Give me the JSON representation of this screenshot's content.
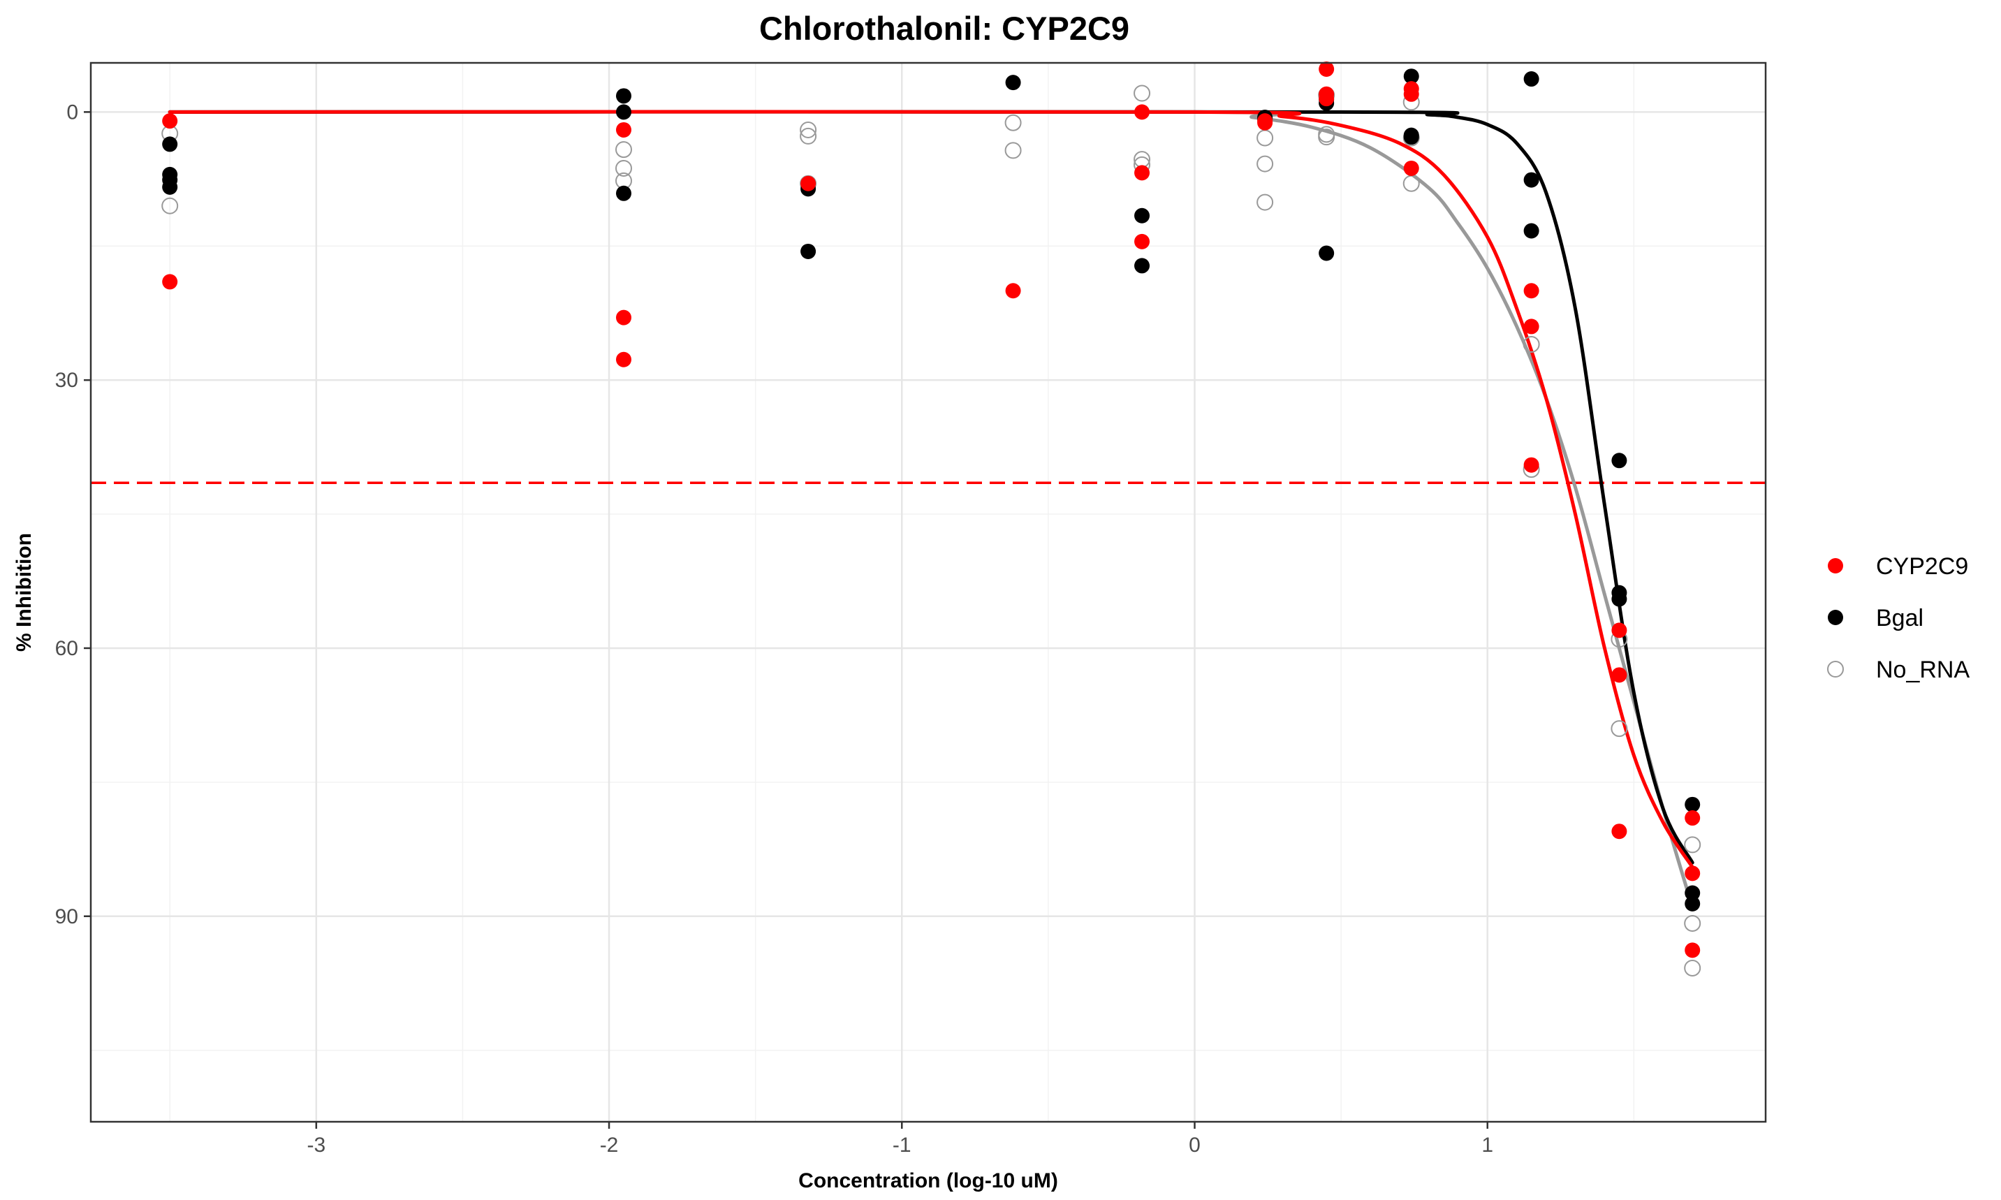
{
  "chart_data": {
    "type": "scatter",
    "title": "Chlorothalonil: CYP2C9",
    "xlabel": "Concentration (log-10 uM)",
    "ylabel": "% Inhibition",
    "xlim": [
      -3.77,
      1.95
    ],
    "ylim": [
      113,
      -5.5
    ],
    "y_reversed": true,
    "x_ticks": [
      -3,
      -2,
      -1,
      0,
      1
    ],
    "x_tick_labels": [
      "-3",
      "-2",
      "-1",
      "0",
      "1"
    ],
    "y_ticks": [
      0,
      30,
      60,
      90
    ],
    "y_tick_labels": [
      "0",
      "30",
      "60",
      "90"
    ],
    "grid": true,
    "legend_position": "right",
    "reference_line": {
      "y": 41.5,
      "color": "#ff0000",
      "style": "dashed"
    },
    "series": [
      {
        "name": "CYP2C9",
        "color": "#ff0000",
        "marker": "filled",
        "points": [
          [
            -3.5,
            1
          ],
          [
            -3.5,
            19
          ],
          [
            -1.95,
            2
          ],
          [
            -1.95,
            23
          ],
          [
            -1.95,
            27.7
          ],
          [
            -1.32,
            8
          ],
          [
            -0.62,
            20
          ],
          [
            -0.18,
            0
          ],
          [
            -0.18,
            6.8
          ],
          [
            -0.18,
            14.5
          ],
          [
            0.24,
            1
          ],
          [
            0.24,
            1.2
          ],
          [
            0.45,
            -4.8
          ],
          [
            0.45,
            -2
          ],
          [
            0.45,
            -1.5
          ],
          [
            0.74,
            -2.6
          ],
          [
            0.74,
            -2
          ],
          [
            0.74,
            6.3
          ],
          [
            1.15,
            20
          ],
          [
            1.15,
            24
          ],
          [
            1.15,
            39.5
          ],
          [
            1.45,
            58
          ],
          [
            1.45,
            63
          ],
          [
            1.45,
            80.5
          ],
          [
            1.7,
            79
          ],
          [
            1.7,
            85.2
          ],
          [
            1.7,
            93.8
          ]
        ],
        "curve": [
          [
            -3.5,
            0
          ],
          [
            0,
            0
          ],
          [
            0.3,
            0.5
          ],
          [
            0.5,
            1.5
          ],
          [
            0.7,
            3.5
          ],
          [
            0.85,
            7
          ],
          [
            1.0,
            14
          ],
          [
            1.1,
            22
          ],
          [
            1.2,
            32
          ],
          [
            1.3,
            45
          ],
          [
            1.4,
            60
          ],
          [
            1.5,
            72
          ],
          [
            1.6,
            79.5
          ],
          [
            1.7,
            84.5
          ]
        ]
      },
      {
        "name": "Bgal",
        "color": "#000000",
        "marker": "filled",
        "points": [
          [
            -3.5,
            3.6
          ],
          [
            -3.5,
            7
          ],
          [
            -3.5,
            7.6
          ],
          [
            -3.5,
            8.4
          ],
          [
            -1.95,
            -1.8
          ],
          [
            -1.95,
            0
          ],
          [
            -1.95,
            9.1
          ],
          [
            -1.32,
            8.6
          ],
          [
            -1.32,
            15.6
          ],
          [
            -0.62,
            -3.3
          ],
          [
            -0.18,
            11.6
          ],
          [
            -0.18,
            17.2
          ],
          [
            0.24,
            0.6
          ],
          [
            0.24,
            0.8
          ],
          [
            0.45,
            -1.4
          ],
          [
            0.45,
            -1
          ],
          [
            0.45,
            15.8
          ],
          [
            0.74,
            -4
          ],
          [
            0.74,
            2.6
          ],
          [
            0.74,
            2.8
          ],
          [
            1.15,
            -3.7
          ],
          [
            1.15,
            7.6
          ],
          [
            1.15,
            13.3
          ],
          [
            1.45,
            39
          ],
          [
            1.45,
            53.8
          ],
          [
            1.45,
            54.5
          ],
          [
            1.7,
            77.5
          ],
          [
            1.7,
            87.4
          ],
          [
            1.7,
            88.6
          ]
        ],
        "curve": [
          [
            -3.5,
            0
          ],
          [
            0.5,
            0
          ],
          [
            0.8,
            0.3
          ],
          [
            0.9,
            0.6
          ],
          [
            1.0,
            1.4
          ],
          [
            1.1,
            3.5
          ],
          [
            1.2,
            9
          ],
          [
            1.3,
            22
          ],
          [
            1.4,
            44
          ],
          [
            1.5,
            65
          ],
          [
            1.6,
            78
          ],
          [
            1.7,
            84
          ]
        ]
      },
      {
        "name": "No_RNA",
        "color": "#999999",
        "marker": "open",
        "points": [
          [
            -3.5,
            2.4
          ],
          [
            -3.5,
            10.5
          ],
          [
            -1.95,
            4.2
          ],
          [
            -1.95,
            6.3
          ],
          [
            -1.95,
            7.7
          ],
          [
            -1.32,
            2
          ],
          [
            -1.32,
            2.7
          ],
          [
            -1.32,
            8
          ],
          [
            -0.62,
            1.2
          ],
          [
            -0.62,
            4.3
          ],
          [
            -0.18,
            -2.1
          ],
          [
            -0.18,
            5.3
          ],
          [
            -0.18,
            5.9
          ],
          [
            0.24,
            2.9
          ],
          [
            0.24,
            5.8
          ],
          [
            0.24,
            10.1
          ],
          [
            0.45,
            -1.9
          ],
          [
            0.45,
            2.5
          ],
          [
            0.45,
            2.8
          ],
          [
            0.74,
            -1.1
          ],
          [
            0.74,
            2.9
          ],
          [
            0.74,
            8
          ],
          [
            1.15,
            26
          ],
          [
            1.15,
            40
          ],
          [
            1.45,
            59
          ],
          [
            1.45,
            69
          ],
          [
            1.7,
            82
          ],
          [
            1.7,
            90.8
          ],
          [
            1.7,
            95.8
          ]
        ],
        "curve": [
          [
            -3.5,
            0
          ],
          [
            0,
            0
          ],
          [
            0.2,
            0.6
          ],
          [
            0.4,
            1.7
          ],
          [
            0.6,
            4
          ],
          [
            0.8,
            8.5
          ],
          [
            0.9,
            12.5
          ],
          [
            1.0,
            17.5
          ],
          [
            1.1,
            24
          ],
          [
            1.2,
            32
          ],
          [
            1.3,
            42
          ],
          [
            1.4,
            54
          ],
          [
            1.5,
            66
          ],
          [
            1.6,
            78
          ],
          [
            1.7,
            89
          ]
        ]
      }
    ]
  }
}
